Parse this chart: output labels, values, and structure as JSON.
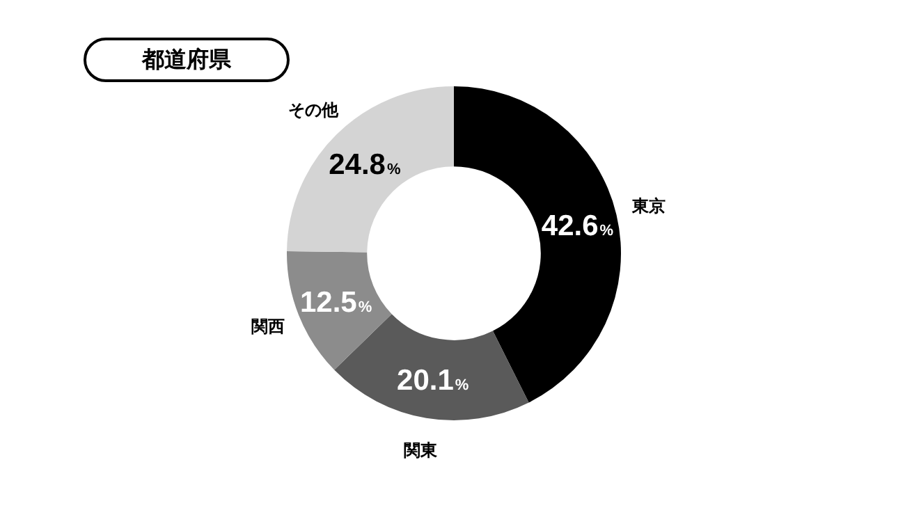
{
  "chart_data": {
    "type": "donut",
    "title": "都道府県",
    "categories": [
      "東京",
      "関東",
      "関西",
      "その他"
    ],
    "values": [
      42.6,
      20.1,
      12.5,
      24.8
    ],
    "colors": [
      "#000000",
      "#5a5a5a",
      "#8c8c8c",
      "#d4d4d4"
    ],
    "value_labels": [
      "42.6%",
      "20.1%",
      "12.5%",
      "24.8%"
    ],
    "legend": false
  }
}
